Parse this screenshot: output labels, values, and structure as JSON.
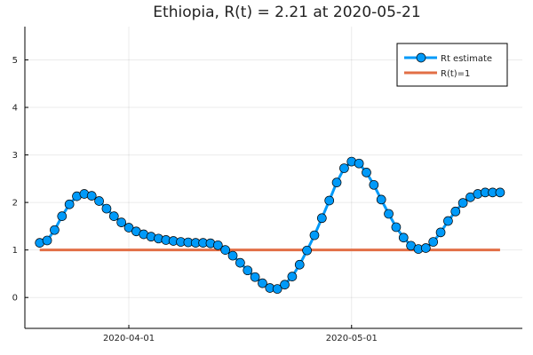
{
  "chart_data": {
    "type": "line",
    "title": "Ethiopia, R(t) = 2.21 at 2020-05-21",
    "xlabel": "",
    "ylabel": "",
    "ylim": [
      -0.65,
      5.7
    ],
    "xlim": [
      "2020-03-18",
      "2020-05-24"
    ],
    "y_ticks": [
      0,
      1,
      2,
      3,
      4,
      5
    ],
    "x_ticks": [
      "2020-04-01",
      "2020-05-01"
    ],
    "grid": true,
    "legend_position": "top-right",
    "colors": {
      "rt": "#009af9",
      "threshold": "#e26f46",
      "marker_edge": "#000000"
    },
    "series": [
      {
        "name": "Rt estimate",
        "style": "line-with-markers",
        "x": [
          "2020-03-20",
          "2020-03-21",
          "2020-03-22",
          "2020-03-23",
          "2020-03-24",
          "2020-03-25",
          "2020-03-26",
          "2020-03-27",
          "2020-03-28",
          "2020-03-29",
          "2020-03-30",
          "2020-03-31",
          "2020-04-01",
          "2020-04-02",
          "2020-04-03",
          "2020-04-04",
          "2020-04-05",
          "2020-04-06",
          "2020-04-07",
          "2020-04-08",
          "2020-04-09",
          "2020-04-10",
          "2020-04-11",
          "2020-04-12",
          "2020-04-13",
          "2020-04-14",
          "2020-04-15",
          "2020-04-16",
          "2020-04-17",
          "2020-04-18",
          "2020-04-19",
          "2020-04-20",
          "2020-04-21",
          "2020-04-22",
          "2020-04-23",
          "2020-04-24",
          "2020-04-25",
          "2020-04-26",
          "2020-04-27",
          "2020-04-28",
          "2020-04-29",
          "2020-04-30",
          "2020-05-01",
          "2020-05-02",
          "2020-05-03",
          "2020-05-04",
          "2020-05-05",
          "2020-05-06",
          "2020-05-07",
          "2020-05-08",
          "2020-05-09",
          "2020-05-10",
          "2020-05-11",
          "2020-05-12",
          "2020-05-13",
          "2020-05-14",
          "2020-05-15",
          "2020-05-16",
          "2020-05-17",
          "2020-05-18",
          "2020-05-19",
          "2020-05-20",
          "2020-05-21"
        ],
        "values": [
          1.15,
          1.2,
          1.42,
          1.71,
          1.96,
          2.13,
          2.18,
          2.14,
          2.03,
          1.87,
          1.71,
          1.58,
          1.47,
          1.39,
          1.33,
          1.28,
          1.24,
          1.21,
          1.19,
          1.17,
          1.16,
          1.15,
          1.15,
          1.14,
          1.1,
          1.0,
          0.88,
          0.73,
          0.57,
          0.43,
          0.3,
          0.2,
          0.18,
          0.27,
          0.44,
          0.69,
          0.99,
          1.31,
          1.67,
          2.04,
          2.42,
          2.72,
          2.86,
          2.82,
          2.63,
          2.37,
          2.06,
          1.76,
          1.48,
          1.26,
          1.09,
          1.02,
          1.04,
          1.17,
          1.37,
          1.61,
          1.81,
          1.99,
          2.11,
          2.18,
          2.21,
          2.21,
          2.21
        ]
      },
      {
        "name": "R(t)=1",
        "style": "line",
        "x": [
          "2020-03-20",
          "2020-05-21"
        ],
        "values": [
          1,
          1
        ]
      }
    ]
  }
}
